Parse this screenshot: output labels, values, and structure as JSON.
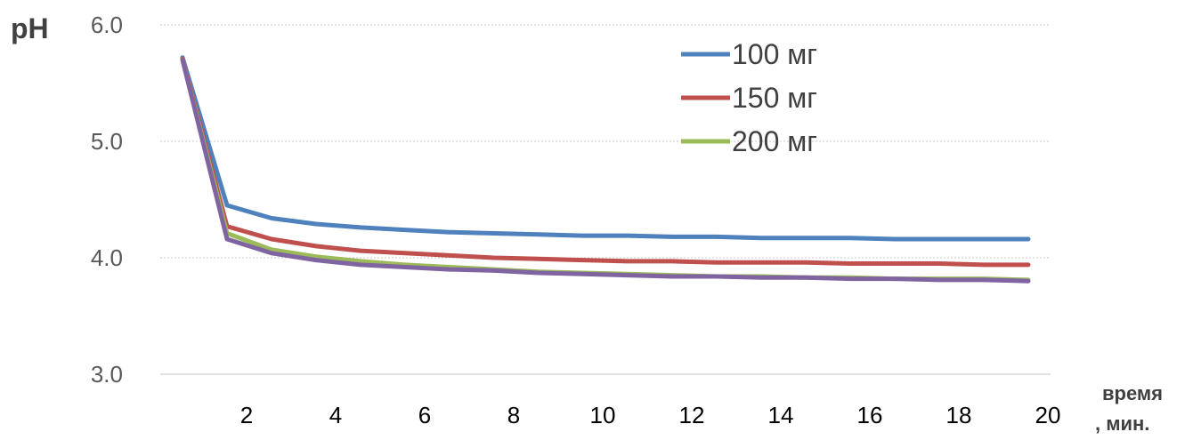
{
  "chart_data": {
    "type": "line",
    "ylabel": "pH",
    "xlabel_line1": "время",
    "xlabel_line2": ", мин.",
    "ylim": [
      3.0,
      6.0
    ],
    "xlim": [
      0,
      20
    ],
    "y_ticks": [
      "3.0",
      "4.0",
      "5.0",
      "6.0"
    ],
    "x_ticks": [
      "2",
      "4",
      "6",
      "8",
      "10",
      "12",
      "14",
      "16",
      "18",
      "20"
    ],
    "grid": true,
    "legend_position": "top-right",
    "x": [
      1,
      2,
      3,
      4,
      5,
      6,
      7,
      8,
      9,
      10,
      11,
      12,
      13,
      14,
      15,
      16,
      17,
      18,
      19,
      20
    ],
    "series": [
      {
        "name": "100 мг",
        "color": "#4f81bd",
        "values": [
          5.72,
          4.45,
          4.34,
          4.29,
          4.26,
          4.24,
          4.22,
          4.21,
          4.2,
          4.19,
          4.19,
          4.18,
          4.18,
          4.17,
          4.17,
          4.17,
          4.16,
          4.16,
          4.16,
          4.16
        ]
      },
      {
        "name": "150 мг",
        "color": "#c0504d",
        "values": [
          5.71,
          4.27,
          4.16,
          4.1,
          4.06,
          4.04,
          4.02,
          4.0,
          3.99,
          3.98,
          3.97,
          3.97,
          3.96,
          3.96,
          3.96,
          3.95,
          3.95,
          3.95,
          3.94,
          3.94
        ]
      },
      {
        "name": "200 мг",
        "color": "#9bbb59",
        "values": [
          5.7,
          4.21,
          4.07,
          4.01,
          3.97,
          3.94,
          3.92,
          3.9,
          3.88,
          3.87,
          3.86,
          3.85,
          3.84,
          3.84,
          3.83,
          3.83,
          3.82,
          3.82,
          3.82,
          3.81
        ]
      },
      {
        "color": "#8064a2",
        "values": [
          5.7,
          4.16,
          4.04,
          3.98,
          3.94,
          3.92,
          3.9,
          3.89,
          3.87,
          3.86,
          3.85,
          3.84,
          3.84,
          3.83,
          3.83,
          3.82,
          3.82,
          3.81,
          3.81,
          3.8
        ]
      }
    ]
  }
}
